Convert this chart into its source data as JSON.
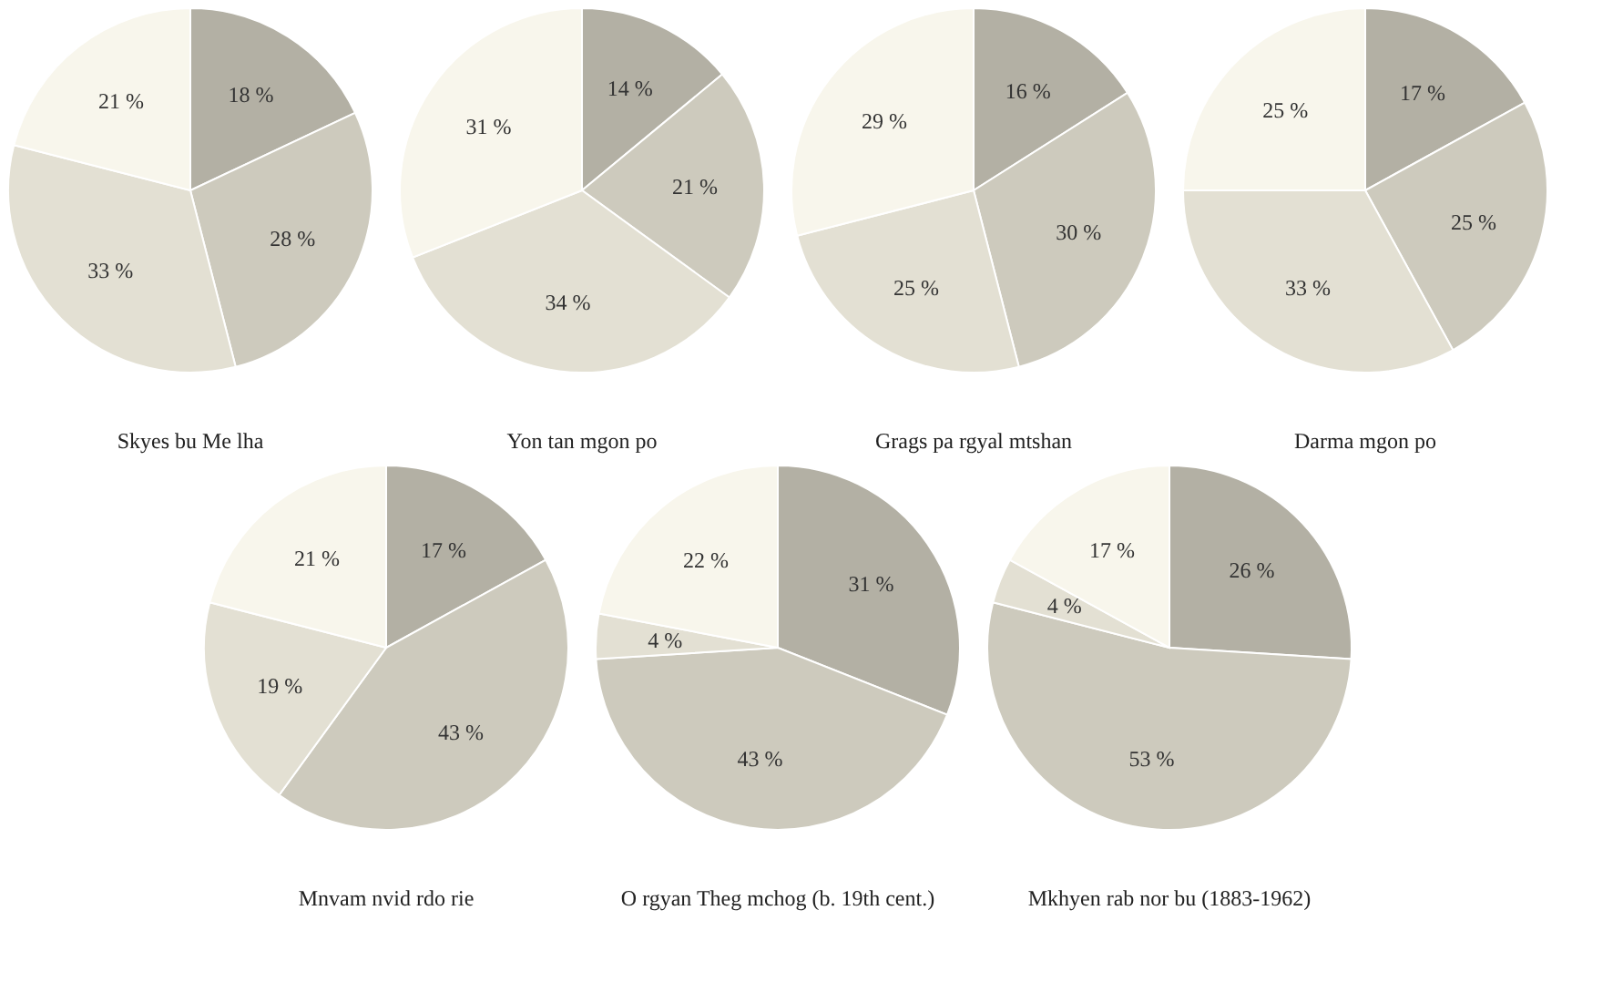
{
  "chart_data": [
    {
      "type": "pie",
      "title": "Skyes bu Me lha",
      "categories": [
        null,
        null,
        null,
        null
      ],
      "values": [
        18,
        28,
        33,
        21
      ],
      "value_labels": [
        "18 %",
        "28 %",
        "33 %",
        "21 %"
      ],
      "colors": [
        "#b3b0a4",
        "#cdcabd",
        "#e3e0d3",
        "#f8f6ec"
      ]
    },
    {
      "type": "pie",
      "title": "Yon tan mgon po",
      "categories": [
        null,
        null,
        null,
        null
      ],
      "values": [
        14,
        21,
        34,
        31
      ],
      "value_labels": [
        "14 %",
        "21 %",
        "34 %",
        "31 %"
      ],
      "colors": [
        "#b3b0a4",
        "#cdcabd",
        "#e3e0d3",
        "#f8f6ec"
      ]
    },
    {
      "type": "pie",
      "title": "Grags pa rgyal mtshan",
      "categories": [
        null,
        null,
        null,
        null
      ],
      "values": [
        16,
        30,
        25,
        29
      ],
      "value_labels": [
        "16 %",
        "30 %",
        "25 %",
        "29 %"
      ],
      "colors": [
        "#b3b0a4",
        "#cdcabd",
        "#e3e0d3",
        "#f8f6ec"
      ]
    },
    {
      "type": "pie",
      "title": "Darma mgon po",
      "categories": [
        null,
        null,
        null,
        null
      ],
      "values": [
        17,
        25,
        33,
        25
      ],
      "value_labels": [
        "17 %",
        "25 %",
        "33 %",
        "25 %"
      ],
      "colors": [
        "#b3b0a4",
        "#cdcabd",
        "#e3e0d3",
        "#f8f6ec"
      ]
    },
    {
      "type": "pie",
      "title": "Mnvam nvid rdo rie",
      "categories": [
        null,
        null,
        null,
        null
      ],
      "values": [
        17,
        43,
        19,
        21
      ],
      "value_labels": [
        "17 %",
        "43 %",
        "19 %",
        "21 %"
      ],
      "colors": [
        "#b3b0a4",
        "#cdcabd",
        "#e3e0d3",
        "#f8f6ec"
      ]
    },
    {
      "type": "pie",
      "title": "O rgyan Theg mchog (b. 19th cent.)",
      "categories": [
        null,
        null,
        null,
        null
      ],
      "values": [
        31,
        43,
        4,
        22
      ],
      "value_labels": [
        "31 %",
        "43 %",
        "4 %",
        "22 %"
      ],
      "colors": [
        "#b3b0a4",
        "#cdcabd",
        "#e3e0d3",
        "#f8f6ec"
      ]
    },
    {
      "type": "pie",
      "title": "Mkhyen rab nor bu (1883-1962)",
      "categories": [
        null,
        null,
        null,
        null
      ],
      "values": [
        26,
        53,
        4,
        17
      ],
      "value_labels": [
        "26 %",
        "53 %",
        "4 %",
        "17 %"
      ],
      "colors": [
        "#b3b0a4",
        "#cdcabd",
        "#e3e0d3",
        "#f8f6ec"
      ]
    }
  ]
}
